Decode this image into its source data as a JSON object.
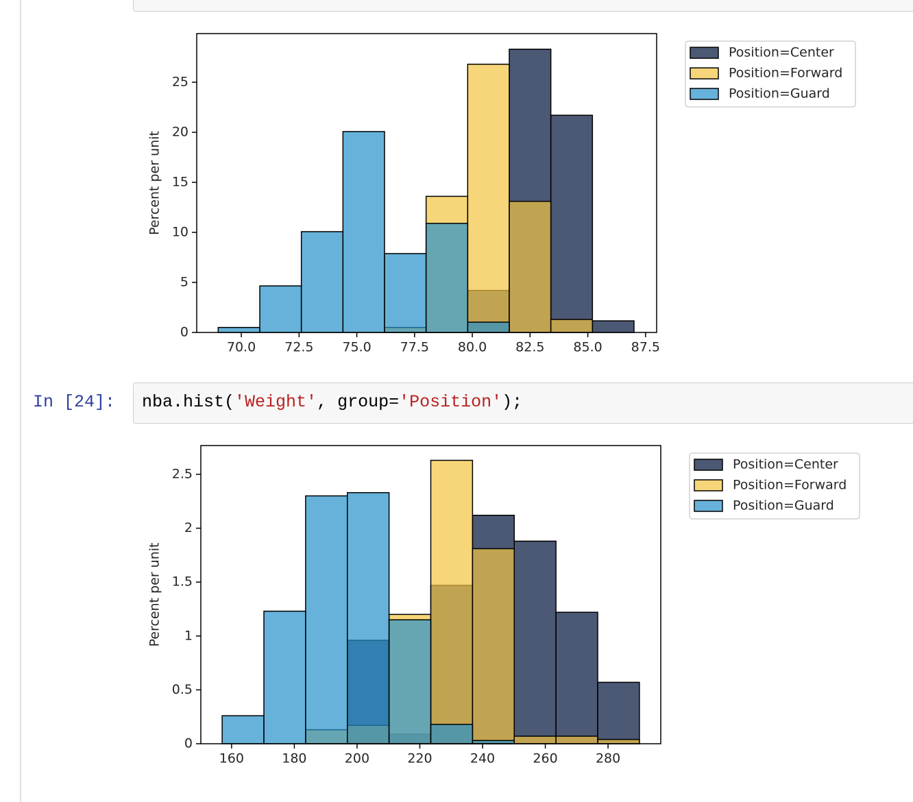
{
  "cells": [
    {
      "prompt": "In [24]:",
      "code": [
        {
          "text": "nba.hist(",
          "kind": "plain"
        },
        {
          "text": "'Weight'",
          "kind": "string"
        },
        {
          "text": ", group=",
          "kind": "plain"
        },
        {
          "text": "'Position'",
          "kind": "string"
        },
        {
          "text": ");",
          "kind": "plain"
        }
      ]
    }
  ],
  "chart_data": [
    {
      "type": "histogram",
      "ylabel": "Percent per unit",
      "xlim": [
        68.07,
        87.98
      ],
      "ylim": [
        0,
        29.86
      ],
      "xticks": [
        {
          "value": 70,
          "label": "70.0"
        },
        72.5,
        {
          "value": 75,
          "label": "75.0"
        },
        77.5,
        {
          "value": 80,
          "label": "80.0"
        },
        82.5,
        {
          "value": 85,
          "label": "85.0"
        },
        87.5
      ],
      "yticks": [
        0,
        5,
        10,
        15,
        20,
        25
      ],
      "legend": "outside right",
      "series": [
        {
          "name": "Position=Center",
          "color": "#00133a",
          "bins": [
            79.8,
            81.6,
            83.4,
            85.2,
            87.0
          ],
          "values": [
            4.2,
            28.3,
            21.7,
            1.16
          ]
        },
        {
          "name": "Position=Forward",
          "color": "#f3c441",
          "bins": [
            76.2,
            78.0,
            79.8,
            81.6,
            83.4,
            85.2
          ],
          "values": [
            0.5,
            13.6,
            26.8,
            13.1,
            1.3
          ]
        },
        {
          "name": "Position=Guard",
          "color": "#2791ca",
          "bins": [
            69.0,
            70.8,
            72.6,
            74.4,
            76.2,
            78.0,
            79.8,
            81.6
          ],
          "values": [
            0.5,
            4.65,
            10.07,
            20.07,
            7.88,
            10.9,
            1.03
          ]
        }
      ]
    },
    {
      "type": "histogram",
      "ylabel": "Percent per unit",
      "xlim": [
        150.2,
        296.8
      ],
      "ylim": [
        0,
        2.767
      ],
      "xticks": [
        160,
        180,
        200,
        220,
        240,
        260,
        280
      ],
      "yticks": [
        0,
        0.5,
        1,
        1.5,
        2,
        2.5
      ],
      "legend": "outside right",
      "series": [
        {
          "name": "Position=Center",
          "color": "#00133a",
          "bins": [
            196.9,
            210.2,
            223.5,
            236.8,
            250.1,
            263.4,
            276.7,
            290
          ],
          "values": [
            0.96,
            0.09,
            1.47,
            2.12,
            1.88,
            1.22,
            0.57
          ]
        },
        {
          "name": "Position=Forward",
          "color": "#f3c441",
          "bins": [
            183.6,
            196.9,
            210.2,
            223.5,
            236.8,
            250.1,
            263.4,
            276.7,
            290
          ],
          "values": [
            0.13,
            0.17,
            1.2,
            2.63,
            1.81,
            0.07,
            0.07,
            0.04
          ]
        },
        {
          "name": "Position=Guard",
          "color": "#2791ca",
          "bins": [
            157,
            170.3,
            183.6,
            196.9,
            210.2,
            223.5,
            236.8,
            250.1
          ],
          "values": [
            0.26,
            1.23,
            2.3,
            2.33,
            1.15,
            0.18,
            0.03
          ]
        }
      ]
    }
  ]
}
